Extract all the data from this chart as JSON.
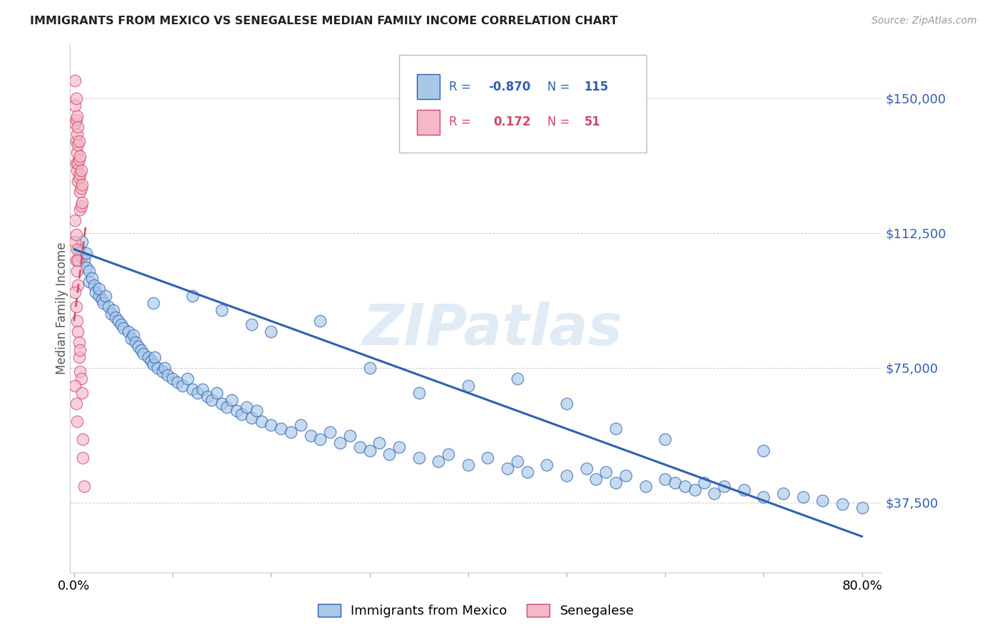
{
  "title": "IMMIGRANTS FROM MEXICO VS SENEGALESE MEDIAN FAMILY INCOME CORRELATION CHART",
  "source": "Source: ZipAtlas.com",
  "ylabel": "Median Family Income",
  "yticks": [
    37500,
    75000,
    112500,
    150000
  ],
  "ytick_labels": [
    "$37,500",
    "$75,000",
    "$112,500",
    "$150,000"
  ],
  "ymin": 18000,
  "ymax": 165000,
  "xmin": -0.004,
  "xmax": 0.82,
  "blue_color": "#A8C8E8",
  "pink_color": "#F4B8C8",
  "blue_line_color": "#3060B0",
  "pink_line_color": "#D04868",
  "watermark": "ZIPatlas",
  "background_color": "#FFFFFF",
  "grid_color": "#CCCCCC",
  "legend_blue_label": "Immigrants from Mexico",
  "legend_pink_label": "Senegalese",
  "blue_line_x0": 0.0,
  "blue_line_x1": 0.8,
  "blue_line_y0": 108000,
  "blue_line_y1": 28000,
  "pink_line_x0": 0.0,
  "pink_line_x1": 0.012,
  "pink_line_y0": 88000,
  "pink_line_y1": 115000,
  "blue_scatter_x": [
    0.005,
    0.007,
    0.008,
    0.01,
    0.012,
    0.012,
    0.015,
    0.015,
    0.018,
    0.02,
    0.022,
    0.025,
    0.025,
    0.028,
    0.03,
    0.032,
    0.035,
    0.038,
    0.04,
    0.042,
    0.045,
    0.048,
    0.05,
    0.055,
    0.058,
    0.06,
    0.062,
    0.065,
    0.068,
    0.07,
    0.075,
    0.078,
    0.08,
    0.082,
    0.085,
    0.09,
    0.092,
    0.095,
    0.1,
    0.105,
    0.11,
    0.115,
    0.12,
    0.125,
    0.13,
    0.135,
    0.14,
    0.145,
    0.15,
    0.155,
    0.16,
    0.165,
    0.17,
    0.175,
    0.18,
    0.185,
    0.19,
    0.2,
    0.21,
    0.22,
    0.23,
    0.24,
    0.25,
    0.26,
    0.27,
    0.28,
    0.29,
    0.3,
    0.31,
    0.32,
    0.33,
    0.35,
    0.37,
    0.38,
    0.4,
    0.42,
    0.44,
    0.45,
    0.46,
    0.48,
    0.5,
    0.52,
    0.53,
    0.54,
    0.55,
    0.56,
    0.58,
    0.6,
    0.61,
    0.62,
    0.63,
    0.64,
    0.65,
    0.66,
    0.68,
    0.7,
    0.72,
    0.74,
    0.76,
    0.78,
    0.8,
    0.3,
    0.4,
    0.5,
    0.2,
    0.6,
    0.7,
    0.35,
    0.55,
    0.25,
    0.45,
    0.15,
    0.08,
    0.12,
    0.18
  ],
  "blue_scatter_y": [
    108000,
    106000,
    110000,
    105000,
    103000,
    107000,
    102000,
    99000,
    100000,
    98000,
    96000,
    95000,
    97000,
    94000,
    93000,
    95000,
    92000,
    90000,
    91000,
    89000,
    88000,
    87000,
    86000,
    85000,
    83000,
    84000,
    82000,
    81000,
    80000,
    79000,
    78000,
    77000,
    76000,
    78000,
    75000,
    74000,
    75000,
    73000,
    72000,
    71000,
    70000,
    72000,
    69000,
    68000,
    69000,
    67000,
    66000,
    68000,
    65000,
    64000,
    66000,
    63000,
    62000,
    64000,
    61000,
    63000,
    60000,
    59000,
    58000,
    57000,
    59000,
    56000,
    55000,
    57000,
    54000,
    56000,
    53000,
    52000,
    54000,
    51000,
    53000,
    50000,
    49000,
    51000,
    48000,
    50000,
    47000,
    49000,
    46000,
    48000,
    45000,
    47000,
    44000,
    46000,
    43000,
    45000,
    42000,
    44000,
    43000,
    42000,
    41000,
    43000,
    40000,
    42000,
    41000,
    39000,
    40000,
    39000,
    38000,
    37000,
    36000,
    75000,
    70000,
    65000,
    85000,
    55000,
    52000,
    68000,
    58000,
    88000,
    72000,
    91000,
    93000,
    95000,
    87000
  ],
  "pink_scatter_x": [
    0.001,
    0.001,
    0.001,
    0.002,
    0.002,
    0.002,
    0.002,
    0.003,
    0.003,
    0.003,
    0.003,
    0.004,
    0.004,
    0.004,
    0.004,
    0.005,
    0.005,
    0.005,
    0.006,
    0.006,
    0.006,
    0.006,
    0.007,
    0.007,
    0.007,
    0.008,
    0.008,
    0.001,
    0.001,
    0.002,
    0.002,
    0.003,
    0.003,
    0.004,
    0.004,
    0.001,
    0.002,
    0.003,
    0.004,
    0.005,
    0.005,
    0.006,
    0.006,
    0.007,
    0.001,
    0.002,
    0.003,
    0.008,
    0.009,
    0.009,
    0.01
  ],
  "pink_scatter_y": [
    155000,
    148000,
    143000,
    150000,
    144000,
    138000,
    132000,
    145000,
    140000,
    135000,
    130000,
    142000,
    137000,
    132000,
    127000,
    138000,
    133000,
    128000,
    134000,
    129000,
    124000,
    119000,
    130000,
    125000,
    120000,
    126000,
    121000,
    110000,
    116000,
    112000,
    105000,
    108000,
    102000,
    105000,
    98000,
    96000,
    92000,
    88000,
    85000,
    82000,
    78000,
    80000,
    74000,
    72000,
    70000,
    65000,
    60000,
    68000,
    55000,
    50000,
    42000
  ]
}
